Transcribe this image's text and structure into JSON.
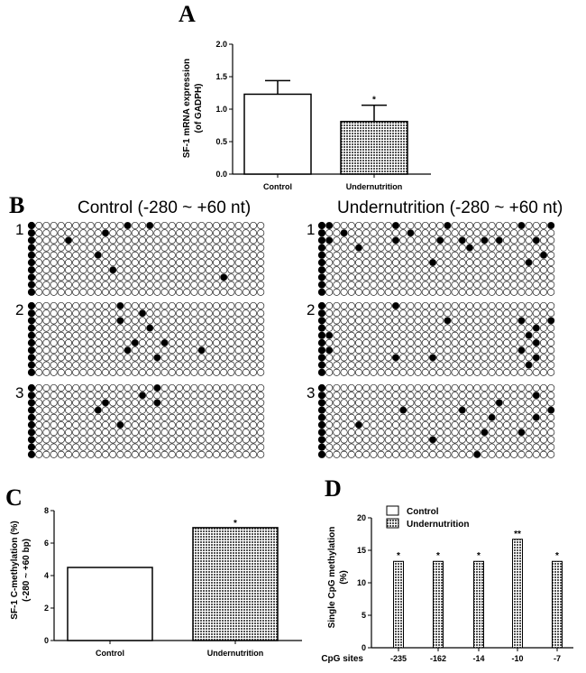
{
  "panels": {
    "A": "A",
    "B": "B",
    "C": "C",
    "D": "D"
  },
  "methylation_titles": {
    "control": "Control (-280 ~ +60 nt)",
    "undernutrition": "Undernutrition (-280 ~ +60 nt)"
  },
  "replicate_labels": [
    "1",
    "2",
    "3"
  ],
  "colors": {
    "pattern": "#555555",
    "methylated": "#000000",
    "unmethylated": "#ffffff"
  },
  "methylation_grids": {
    "columns": 30,
    "rows": 10,
    "control": [
      [
        [
          0,
          12
        ],
        [
          0,
          15
        ],
        [
          1,
          9
        ],
        [
          2,
          4
        ],
        [
          4,
          8
        ],
        [
          6,
          10
        ],
        [
          7,
          25
        ]
      ],
      [
        [
          0,
          11
        ],
        [
          1,
          14
        ],
        [
          2,
          11
        ],
        [
          3,
          15
        ],
        [
          5,
          13
        ],
        [
          5,
          17
        ],
        [
          6,
          12
        ],
        [
          6,
          22
        ],
        [
          7,
          16
        ]
      ],
      [
        [
          0,
          16
        ],
        [
          1,
          14
        ],
        [
          2,
          9
        ],
        [
          2,
          16
        ],
        [
          3,
          8
        ],
        [
          5,
          11
        ]
      ]
    ],
    "undernutrition": [
      [
        [
          0,
          0
        ],
        [
          0,
          9
        ],
        [
          0,
          16
        ],
        [
          0,
          26
        ],
        [
          0,
          30
        ],
        [
          1,
          2
        ],
        [
          1,
          11
        ],
        [
          2,
          0
        ],
        [
          2,
          9
        ],
        [
          2,
          15
        ],
        [
          2,
          18
        ],
        [
          2,
          21
        ],
        [
          2,
          23
        ],
        [
          2,
          28
        ],
        [
          3,
          4
        ],
        [
          3,
          19
        ],
        [
          4,
          29
        ],
        [
          5,
          14
        ],
        [
          5,
          27
        ]
      ],
      [
        [
          0,
          9
        ],
        [
          2,
          16
        ],
        [
          2,
          26
        ],
        [
          2,
          30
        ],
        [
          3,
          28
        ],
        [
          4,
          0
        ],
        [
          4,
          27
        ],
        [
          5,
          28
        ],
        [
          6,
          0
        ],
        [
          6,
          26
        ],
        [
          7,
          9
        ],
        [
          7,
          14
        ],
        [
          7,
          28
        ],
        [
          8,
          27
        ]
      ],
      [
        [
          1,
          28
        ],
        [
          2,
          23
        ],
        [
          3,
          10
        ],
        [
          3,
          18
        ],
        [
          3,
          30
        ],
        [
          4,
          22
        ],
        [
          4,
          28
        ],
        [
          5,
          4
        ],
        [
          6,
          21
        ],
        [
          6,
          26
        ],
        [
          7,
          14
        ],
        [
          9,
          20
        ]
      ]
    ]
  },
  "chart_data": [
    {
      "id": "A",
      "type": "bar",
      "categories": [
        "Control",
        "Undernutrition"
      ],
      "values": [
        1.23,
        0.81
      ],
      "error": [
        0.21,
        0.25
      ],
      "significance": [
        "",
        "*"
      ],
      "title": "",
      "xlabel": "",
      "ylabel": "SF-1 mRNA expression (of GADPH)",
      "ylabel_lines": [
        "SF-1 mRNA expression",
        "(of GADPH)"
      ],
      "ylim": [
        0,
        2.0
      ],
      "yticks": [
        0.0,
        0.5,
        1.0,
        1.5,
        2.0
      ],
      "ytick_labels": [
        "0.0",
        "0.5",
        "1.0",
        "1.5",
        "2.0"
      ],
      "fills": [
        "white",
        "crosshatch"
      ]
    },
    {
      "id": "C",
      "type": "bar",
      "categories": [
        "Control",
        "Undernutrition"
      ],
      "values": [
        4.5,
        6.95
      ],
      "significance": [
        "",
        "*"
      ],
      "title": "",
      "xlabel": "",
      "ylabel": "SF-1 C-methylation (%) (-280 ~ +60 bp)",
      "ylabel_lines": [
        "SF-1 C-methylation (%)",
        "(-280 ~ +60 bp)"
      ],
      "ylim": [
        0,
        8
      ],
      "yticks": [
        0,
        2,
        4,
        6,
        8
      ],
      "ytick_labels": [
        "0",
        "2",
        "4",
        "6",
        "8"
      ],
      "fills": [
        "white",
        "crosshatch"
      ]
    },
    {
      "id": "D",
      "type": "bar",
      "categories": [
        "-235",
        "-162",
        "-14",
        "-10",
        "-7"
      ],
      "series": [
        {
          "name": "Control",
          "values": [
            0,
            0,
            0,
            0,
            0
          ]
        },
        {
          "name": "Undernutrition",
          "values": [
            13.3,
            13.3,
            13.3,
            16.7,
            13.3
          ]
        }
      ],
      "significance": [
        "*",
        "*",
        "*",
        "**",
        "*"
      ],
      "title": "",
      "xlabel": "CpG sites",
      "ylabel": "Single CpG methylation (%)",
      "ylabel_lines": [
        "Single CpG methylation",
        "(%)"
      ],
      "ylim": [
        0,
        20
      ],
      "yticks": [
        0,
        5,
        10,
        15,
        20
      ],
      "ytick_labels": [
        "0",
        "5",
        "10",
        "15",
        "20"
      ],
      "legend": [
        "Control",
        "Undernutrition"
      ],
      "legend_position": "top-left"
    }
  ]
}
